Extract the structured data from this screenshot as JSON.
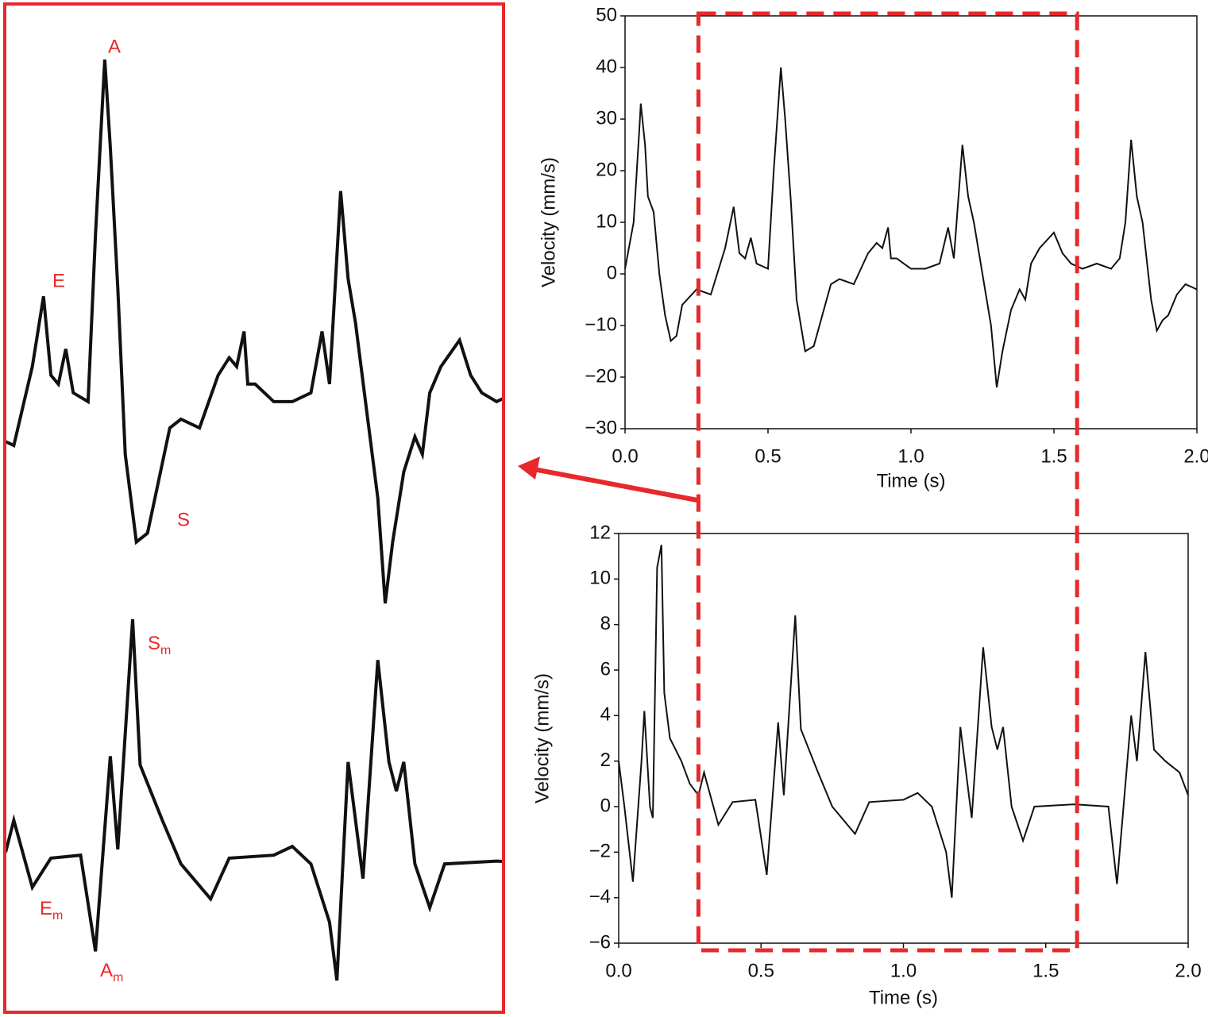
{
  "zoom_window": [
    0.28,
    1.61
  ],
  "zoom_labels": [
    {
      "text": "A"
    },
    {
      "text": "E"
    },
    {
      "text": "S"
    },
    {
      "text": "S",
      "sub": "m"
    },
    {
      "text": "E",
      "sub": "m"
    },
    {
      "text": "A",
      "sub": "m"
    }
  ],
  "chart_data": [
    {
      "type": "line",
      "xlabel": "Time (s)",
      "ylabel": "Velocity (mm/s)",
      "color": "#111111",
      "xlim": [
        0,
        2
      ],
      "ylim": [
        -30,
        50
      ],
      "xticks": [
        {
          "value": 0,
          "label": "0.0"
        },
        {
          "value": 0.5,
          "label": "0.5"
        },
        {
          "value": 1,
          "label": "1.0"
        },
        {
          "value": 1.5,
          "label": "1.5"
        },
        {
          "value": 2,
          "label": "2.0"
        }
      ],
      "yticks": [
        {
          "value": -30,
          "label": "−30"
        },
        {
          "value": -20,
          "label": "−20"
        },
        {
          "value": -10,
          "label": "−10"
        },
        0,
        10,
        20,
        30,
        40,
        50
      ],
      "x": [
        0,
        0.03,
        0.05,
        0.055,
        0.07,
        0.08,
        0.1,
        0.12,
        0.14,
        0.16,
        0.18,
        0.2,
        0.25,
        0.3,
        0.35,
        0.38,
        0.4,
        0.42,
        0.44,
        0.46,
        0.5,
        0.52,
        0.545,
        0.56,
        0.58,
        0.6,
        0.63,
        0.66,
        0.68,
        0.72,
        0.75,
        0.8,
        0.85,
        0.88,
        0.9,
        0.92,
        0.93,
        0.95,
        1.0,
        1.05,
        1.1,
        1.13,
        1.15,
        1.18,
        1.2,
        1.22,
        1.25,
        1.28,
        1.3,
        1.32,
        1.35,
        1.38,
        1.4,
        1.42,
        1.45,
        1.5,
        1.53,
        1.56,
        1.6,
        1.65,
        1.7,
        1.73,
        1.75,
        1.77,
        1.79,
        1.81,
        1.84,
        1.86,
        1.88,
        1.9,
        1.93,
        1.96,
        2.0
      ],
      "values": [
        1,
        10,
        28,
        33,
        25,
        15,
        12,
        0,
        -8,
        -13,
        -12,
        -6,
        -3,
        -4,
        5,
        13,
        4,
        3,
        7,
        2,
        1,
        20,
        40,
        30,
        14,
        -5,
        -15,
        -14,
        -10,
        -2,
        -1,
        -2,
        4,
        6,
        5,
        9,
        3,
        3,
        1,
        1,
        2,
        9,
        3,
        25,
        15,
        10,
        0,
        -10,
        -22,
        -15,
        -7,
        -3,
        -5,
        2,
        5,
        8,
        4,
        2,
        1,
        2,
        1,
        3,
        10,
        26,
        15,
        10,
        -5,
        -11,
        -9,
        -8,
        -4,
        -2,
        -3
      ]
    },
    {
      "type": "line",
      "xlabel": "Time (s)",
      "ylabel": "Velocity (mm/s)",
      "color": "#111111",
      "xlim": [
        0,
        2
      ],
      "ylim": [
        -6,
        12
      ],
      "xticks": [
        {
          "value": 0,
          "label": "0.0"
        },
        {
          "value": 0.5,
          "label": "0.5"
        },
        {
          "value": 1,
          "label": "1.0"
        },
        {
          "value": 1.5,
          "label": "1.5"
        },
        {
          "value": 2,
          "label": "2.0"
        }
      ],
      "yticks": [
        {
          "value": -6,
          "label": "−6"
        },
        {
          "value": -4,
          "label": "−4"
        },
        {
          "value": -2,
          "label": "−2"
        },
        0,
        2,
        4,
        6,
        8,
        10,
        12
      ],
      "x": [
        0,
        0.02,
        0.05,
        0.08,
        0.09,
        0.11,
        0.12,
        0.135,
        0.15,
        0.16,
        0.18,
        0.22,
        0.25,
        0.28,
        0.3,
        0.35,
        0.4,
        0.48,
        0.52,
        0.56,
        0.58,
        0.62,
        0.64,
        0.7,
        0.75,
        0.83,
        0.88,
        1.0,
        1.05,
        1.1,
        1.15,
        1.17,
        1.2,
        1.24,
        1.28,
        1.31,
        1.33,
        1.35,
        1.38,
        1.42,
        1.46,
        1.6,
        1.72,
        1.75,
        1.8,
        1.82,
        1.85,
        1.88,
        1.92,
        1.97,
        2.0
      ],
      "values": [
        2,
        0,
        -3.3,
        2,
        4.2,
        0,
        -0.5,
        10.5,
        11.5,
        5,
        3,
        2,
        1,
        0.5,
        1.5,
        -0.8,
        0.2,
        0.3,
        -3,
        3.7,
        0.5,
        8.4,
        3.4,
        1.5,
        0,
        -1.2,
        0.2,
        0.3,
        0.6,
        0,
        -2,
        -4,
        3.5,
        -0.5,
        7,
        3.5,
        2.5,
        3.5,
        0,
        -1.5,
        0,
        0.1,
        0,
        -3.4,
        4,
        2,
        6.8,
        2.5,
        2,
        1.5,
        0.5
      ]
    }
  ]
}
